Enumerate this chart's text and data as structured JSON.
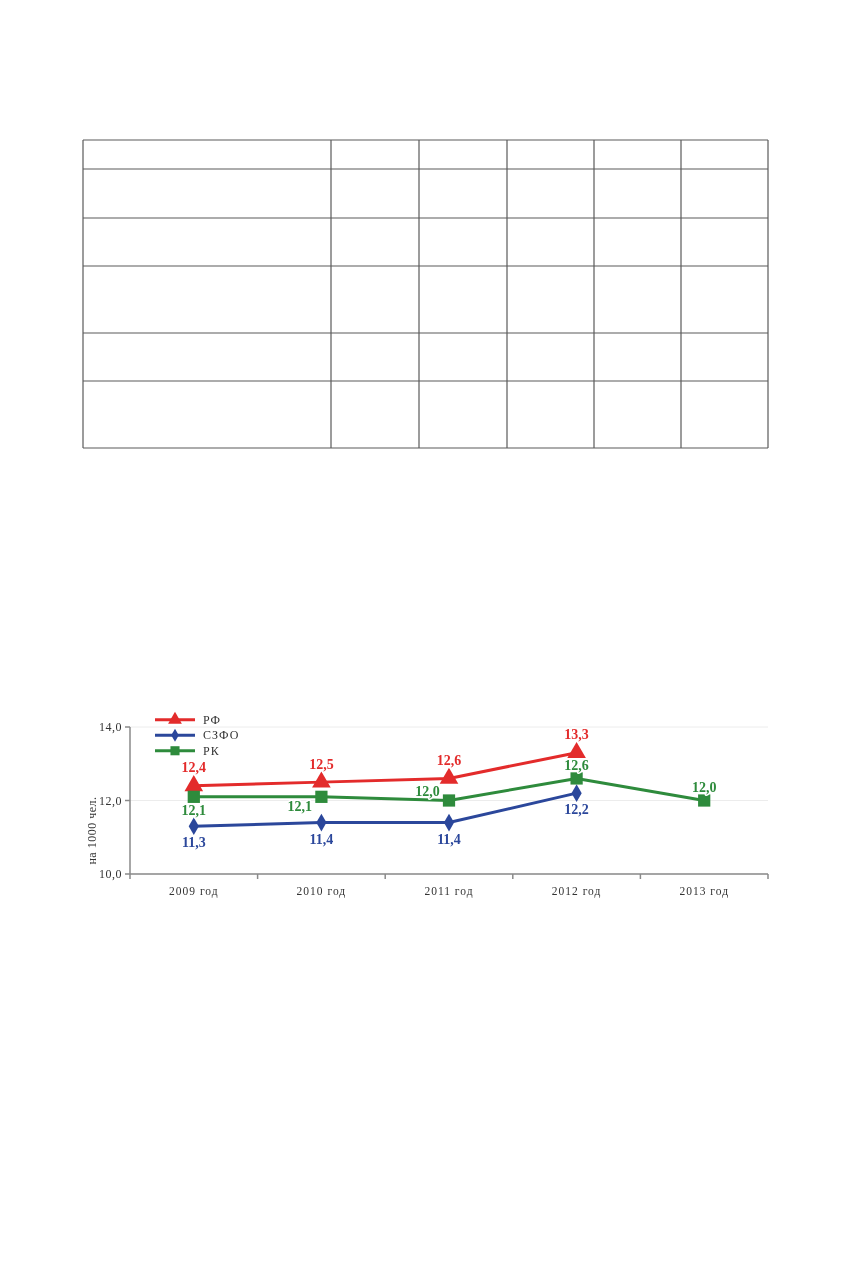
{
  "chart_data": {
    "type": "line",
    "categories": [
      "2009 год",
      "2010 год",
      "2011 год",
      "2012 год",
      "2013 год"
    ],
    "ylabel": "на 1000 чел.",
    "ylim": [
      10,
      14
    ],
    "yticks": [
      {
        "value": 10,
        "label": "10,0"
      },
      {
        "value": 12,
        "label": "12,0"
      },
      {
        "value": 14,
        "label": "14,0"
      }
    ],
    "grid": "y",
    "legend": "top left",
    "series": [
      {
        "name": "РФ",
        "color": "#e32b2b",
        "marker": "triangle",
        "values": [
          12.4,
          12.5,
          12.6,
          13.3,
          null
        ],
        "value_labels": [
          "12,4",
          "12,5",
          "12,6",
          "13,3",
          null
        ]
      },
      {
        "name": "СЗФО",
        "color": "#2b479b",
        "marker": "diamond",
        "values": [
          11.3,
          11.4,
          11.4,
          12.2,
          null
        ],
        "value_labels": [
          "11,3",
          "11,4",
          "11,4",
          "12,2",
          null
        ]
      },
      {
        "name": "РК",
        "color": "#2e8b3c",
        "marker": "square",
        "values": [
          12.1,
          12.1,
          12.0,
          12.6,
          12.0
        ],
        "value_labels": [
          "12,1",
          "12,1",
          "12,0",
          "12,6",
          "12,0"
        ]
      }
    ]
  }
}
